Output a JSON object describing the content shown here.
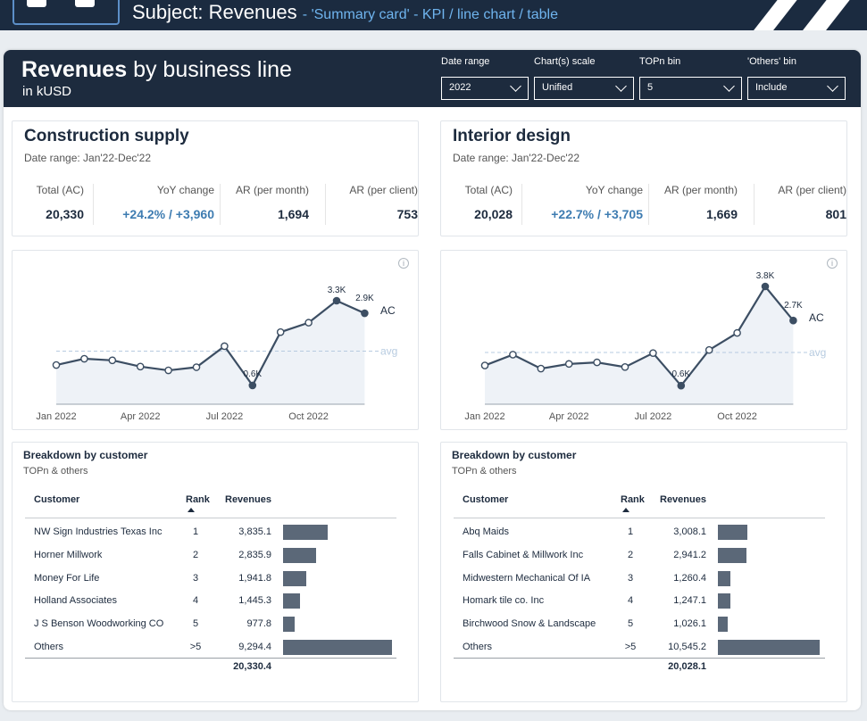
{
  "banner": {
    "subject": "Subject: Revenues",
    "desc": "- 'Summary card' - KPI / line chart / table"
  },
  "header": {
    "title_bold": "Revenues",
    "title_rest": " by business line",
    "subtitle": "in kUSD"
  },
  "filters": [
    {
      "label": "Date range",
      "value": "2022"
    },
    {
      "label": "Chart(s) scale",
      "value": "Unified"
    },
    {
      "label": "TOPn bin",
      "value": "5"
    },
    {
      "label": "'Others' bin",
      "value": "Include"
    }
  ],
  "kpi_labels": [
    "Total (AC)",
    "YoY change",
    "AR (per month)",
    "AR (per client)"
  ],
  "panels": [
    {
      "name": "Construction supply",
      "date_range": "Date range: Jan'22-Dec'22",
      "kpi": {
        "total": "20,330",
        "yoy": "+24.2% / +3,960",
        "ar_month": "1,694",
        "ar_client": "753"
      },
      "chart": {
        "values": [
          1.25,
          1.45,
          1.4,
          1.2,
          1.08,
          1.18,
          1.85,
          0.6,
          2.3,
          2.6,
          3.3,
          2.9
        ],
        "avg": 1.694,
        "labels": [
          {
            "i": 7,
            "text": "0.6K"
          },
          {
            "i": 10,
            "text": "3.3K"
          },
          {
            "i": 11,
            "text": "2.9K"
          }
        ],
        "ac_label": "AC",
        "avg_label": "avg",
        "x_ticks": [
          {
            "i": 0,
            "text": "Jan 2022"
          },
          {
            "i": 3,
            "text": "Apr 2022"
          },
          {
            "i": 6,
            "text": "Jul 2022"
          },
          {
            "i": 9,
            "text": "Oct 2022"
          }
        ]
      },
      "breakdown": {
        "title": "Breakdown by customer",
        "subtitle": "TOPn & others",
        "headers": {
          "customer": "Customer",
          "rank": "Rank",
          "revenues": "Revenues"
        },
        "rows": [
          {
            "customer": "NW Sign Industries Texas Inc",
            "rank": "1",
            "revenue": "3,835.1",
            "value": 3835.1
          },
          {
            "customer": "Horner Millwork",
            "rank": "2",
            "revenue": "2,835.9",
            "value": 2835.9
          },
          {
            "customer": "Money For Life",
            "rank": "3",
            "revenue": "1,941.8",
            "value": 1941.8
          },
          {
            "customer": "Holland Associates",
            "rank": "4",
            "revenue": "1,445.3",
            "value": 1445.3
          },
          {
            "customer": "J S Benson Woodworking CO",
            "rank": "5",
            "revenue": "977.8",
            "value": 977.8
          },
          {
            "customer": "Others",
            "rank": ">5",
            "revenue": "9,294.4",
            "value": 9294.4
          }
        ],
        "total": "20,330.4"
      }
    },
    {
      "name": "Interior design",
      "date_range": "Date range: Jan'22-Dec'22",
      "kpi": {
        "total": "20,028",
        "yoy": "+22.7% / +3,705",
        "ar_month": "1,669",
        "ar_client": "801"
      },
      "chart": {
        "values": [
          1.25,
          1.6,
          1.15,
          1.3,
          1.35,
          1.2,
          1.65,
          0.6,
          1.75,
          2.3,
          3.8,
          2.7
        ],
        "avg": 1.669,
        "labels": [
          {
            "i": 7,
            "text": "0.6K"
          },
          {
            "i": 10,
            "text": "3.8K"
          },
          {
            "i": 11,
            "text": "2.7K"
          }
        ],
        "ac_label": "AC",
        "avg_label": "avg",
        "x_ticks": [
          {
            "i": 0,
            "text": "Jan 2022"
          },
          {
            "i": 3,
            "text": "Apr 2022"
          },
          {
            "i": 6,
            "text": "Jul 2022"
          },
          {
            "i": 9,
            "text": "Oct 2022"
          }
        ]
      },
      "breakdown": {
        "title": "Breakdown by customer",
        "subtitle": "TOPn & others",
        "headers": {
          "customer": "Customer",
          "rank": "Rank",
          "revenues": "Revenues"
        },
        "rows": [
          {
            "customer": "Abq Maids",
            "rank": "1",
            "revenue": "3,008.1",
            "value": 3008.1
          },
          {
            "customer": "Falls Cabinet & Millwork Inc",
            "rank": "2",
            "revenue": "2,941.2",
            "value": 2941.2
          },
          {
            "customer": "Midwestern Mechanical Of IA",
            "rank": "3",
            "revenue": "1,260.4",
            "value": 1260.4
          },
          {
            "customer": "Homark tile co. Inc",
            "rank": "4",
            "revenue": "1,247.1",
            "value": 1247.1
          },
          {
            "customer": "Birchwood Snow & Landscape",
            "rank": "5",
            "revenue": "1,026.1",
            "value": 1026.1
          },
          {
            "customer": "Others",
            "rank": ">5",
            "revenue": "10,545.2",
            "value": 10545.2
          }
        ],
        "total": "20,028.1"
      }
    }
  ],
  "colors": {
    "header_bg": "#1d2b3e",
    "line": "#3c4e63",
    "area": "#eef2f7",
    "avg": "#b7cbe0",
    "bar": "#5b6878",
    "accent": "#3e7cb1"
  },
  "info_icon": "info-icon",
  "chart_data": [
    {
      "type": "line",
      "x": [
        "Jan 2022",
        "Feb 2022",
        "Mar 2022",
        "Apr 2022",
        "May 2022",
        "Jun 2022",
        "Jul 2022",
        "Aug 2022",
        "Sep 2022",
        "Oct 2022",
        "Nov 2022",
        "Dec 2022"
      ],
      "series": [
        {
          "name": "AC",
          "values": [
            1.25,
            1.45,
            1.4,
            1.2,
            1.08,
            1.18,
            1.85,
            0.6,
            2.3,
            2.6,
            3.3,
            2.9
          ]
        }
      ],
      "avg": 1.694,
      "unit": "K"
    },
    {
      "type": "line",
      "x": [
        "Jan 2022",
        "Feb 2022",
        "Mar 2022",
        "Apr 2022",
        "May 2022",
        "Jun 2022",
        "Jul 2022",
        "Aug 2022",
        "Sep 2022",
        "Oct 2022",
        "Nov 2022",
        "Dec 2022"
      ],
      "series": [
        {
          "name": "AC",
          "values": [
            1.25,
            1.6,
            1.15,
            1.3,
            1.35,
            1.2,
            1.65,
            0.6,
            1.75,
            2.3,
            3.8,
            2.7
          ]
        }
      ],
      "avg": 1.669,
      "unit": "K"
    }
  ]
}
